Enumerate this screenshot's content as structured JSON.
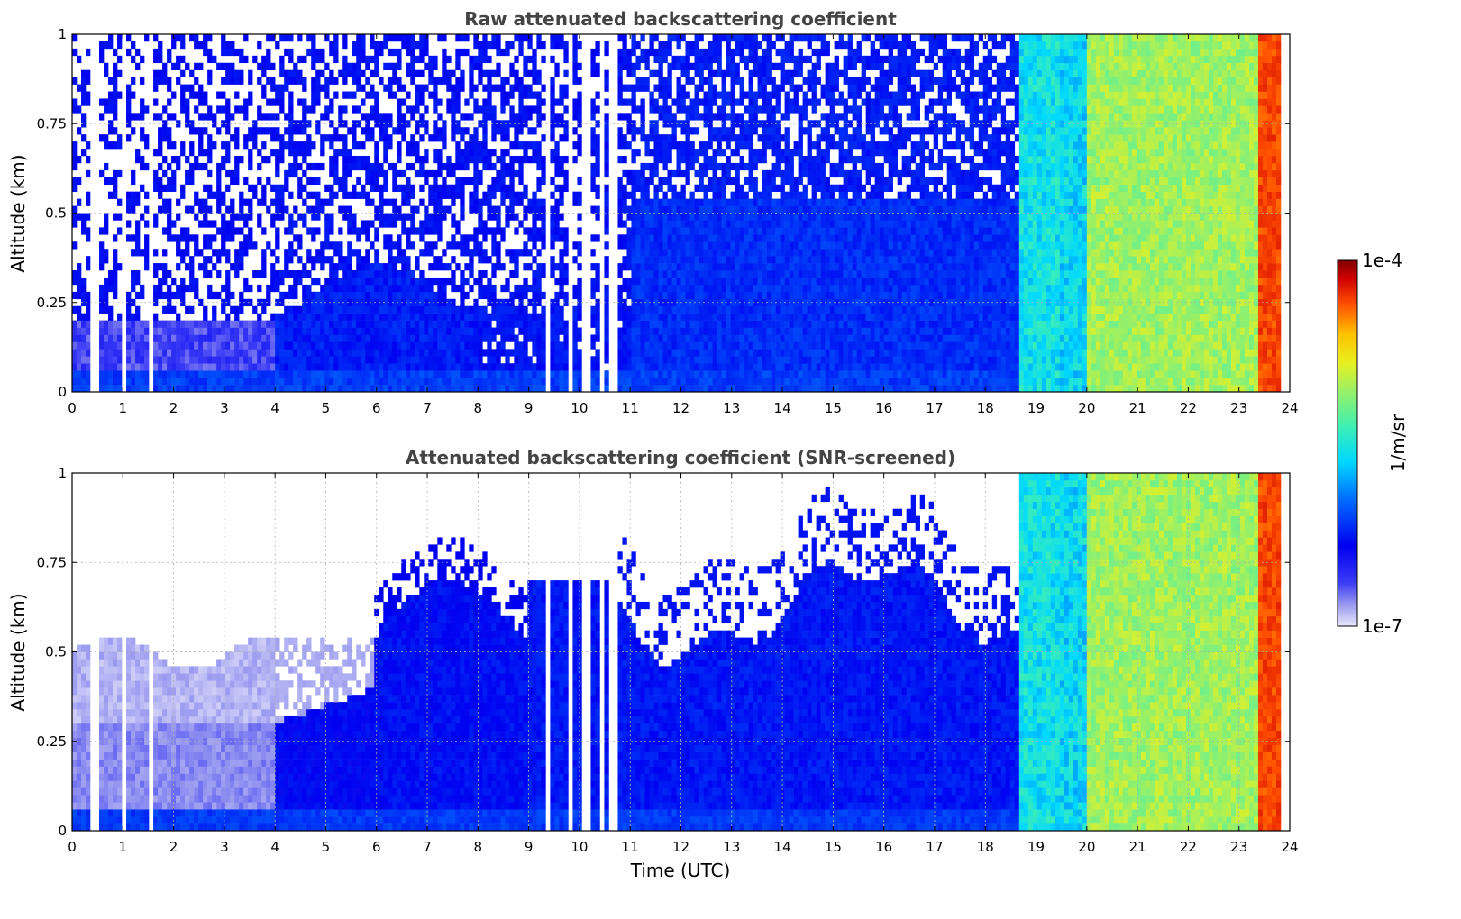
{
  "chart_data": [
    {
      "type": "heatmap",
      "title": "Raw attenuated backscattering coefficient",
      "ylabel": "Altitude (km)",
      "xlabel": "",
      "xlim": [
        0,
        24
      ],
      "ylim": [
        0,
        1
      ],
      "x_ticks": [
        "0",
        "1",
        "2",
        "3",
        "4",
        "5",
        "6",
        "7",
        "8",
        "9",
        "10",
        "11",
        "12",
        "13",
        "14",
        "15",
        "16",
        "17",
        "18",
        "19",
        "20",
        "21",
        "22",
        "23",
        "24"
      ],
      "y_ticks": [
        "0",
        "0.25",
        "0.5",
        "0.75",
        "1"
      ],
      "grid": false,
      "segments": [
        {
          "t0": 0,
          "t1": 4,
          "regime": "faint noisy, light blue near surface below 0.2 km"
        },
        {
          "t0": 4,
          "t1": 8,
          "regime": "blue layer to ~0.3 km, noisy above"
        },
        {
          "t0": 8,
          "t1": 11,
          "regime": "noisy blue with data gaps"
        },
        {
          "t0": 11,
          "t1": 18.7,
          "regime": "blue, denser below 0.6 km"
        },
        {
          "t0": 18.7,
          "t1": 20,
          "regime": "cyan to blue full column"
        },
        {
          "t0": 20,
          "t1": 23.4,
          "regime": "green-yellow full column"
        },
        {
          "t0": 23.4,
          "t1": 23.8,
          "regime": "orange-red full column"
        }
      ]
    },
    {
      "type": "heatmap",
      "title": "Attenuated backscattering coefficient (SNR-screened)",
      "ylabel": "Altitude (km)",
      "xlabel": "Time (UTC)",
      "xlim": [
        0,
        24
      ],
      "ylim": [
        0,
        1
      ],
      "x_ticks": [
        "0",
        "1",
        "2",
        "3",
        "4",
        "5",
        "6",
        "7",
        "8",
        "9",
        "10",
        "11",
        "12",
        "13",
        "14",
        "15",
        "16",
        "17",
        "18",
        "19",
        "20",
        "21",
        "22",
        "23",
        "24"
      ],
      "y_ticks": [
        "0",
        "0.25",
        "0.5",
        "0.75",
        "1"
      ],
      "grid": true,
      "segments": [
        {
          "t0": 0,
          "t1": 4,
          "regime": "light lavender layer up to ~0.55 km"
        },
        {
          "t0": 4,
          "t1": 6,
          "regime": "blue layer to ~0.35 km"
        },
        {
          "t0": 6,
          "t1": 9,
          "regime": "blue layer rising to ~0.75 km"
        },
        {
          "t0": 9,
          "t1": 10.7,
          "regime": "blue with gaps"
        },
        {
          "t0": 10.7,
          "t1": 18.7,
          "regime": "blue layer ~0.55–0.8 km top"
        },
        {
          "t0": 18.7,
          "t1": 20,
          "regime": "cyan to blue full column"
        },
        {
          "t0": 20,
          "t1": 23.4,
          "regime": "green-yellow full column"
        },
        {
          "t0": 23.4,
          "t1": 23.8,
          "regime": "orange-red full column"
        }
      ]
    }
  ],
  "colorbar": {
    "label": "1/m/sr",
    "max_label": "1e-4",
    "min_label": "1e-7",
    "colormap": "jet-like (white/lavender → blue → cyan → green → yellow → red → dark red)"
  }
}
